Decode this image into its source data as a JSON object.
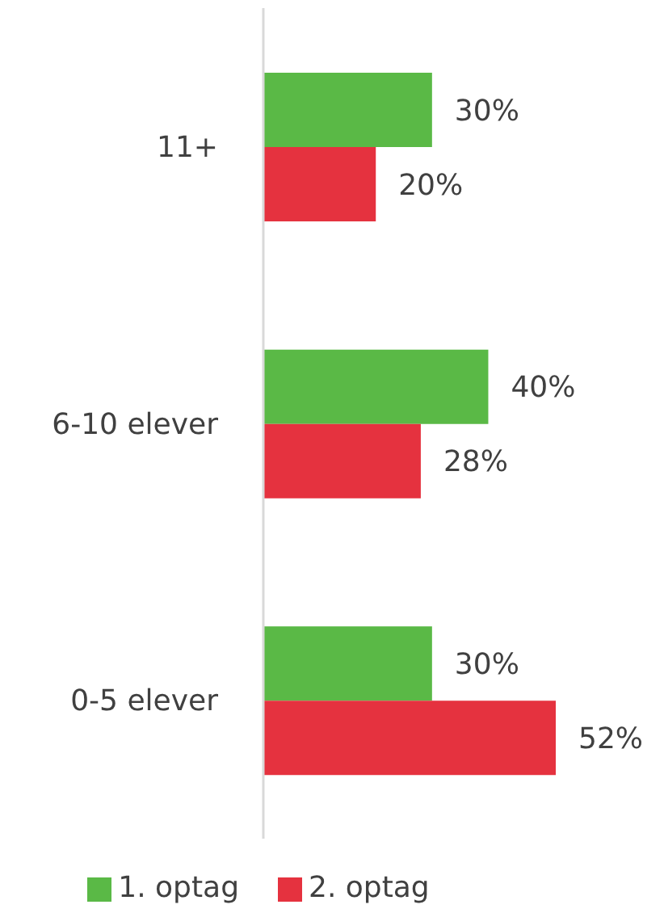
{
  "chart_data": {
    "type": "bar",
    "orientation": "horizontal",
    "categories": [
      "11+",
      "6-10 elever",
      "0-5 elever"
    ],
    "series": [
      {
        "name": "1. optag",
        "color": "#5ab946",
        "values": [
          30,
          40,
          30
        ],
        "value_labels": [
          "30%",
          "40%",
          "30%"
        ]
      },
      {
        "name": "2. optag",
        "color": "#e5323f",
        "values": [
          20,
          28,
          52
        ],
        "value_labels": [
          "20%",
          "28%",
          "52%"
        ]
      }
    ],
    "legend": "bottom",
    "grid": false
  }
}
